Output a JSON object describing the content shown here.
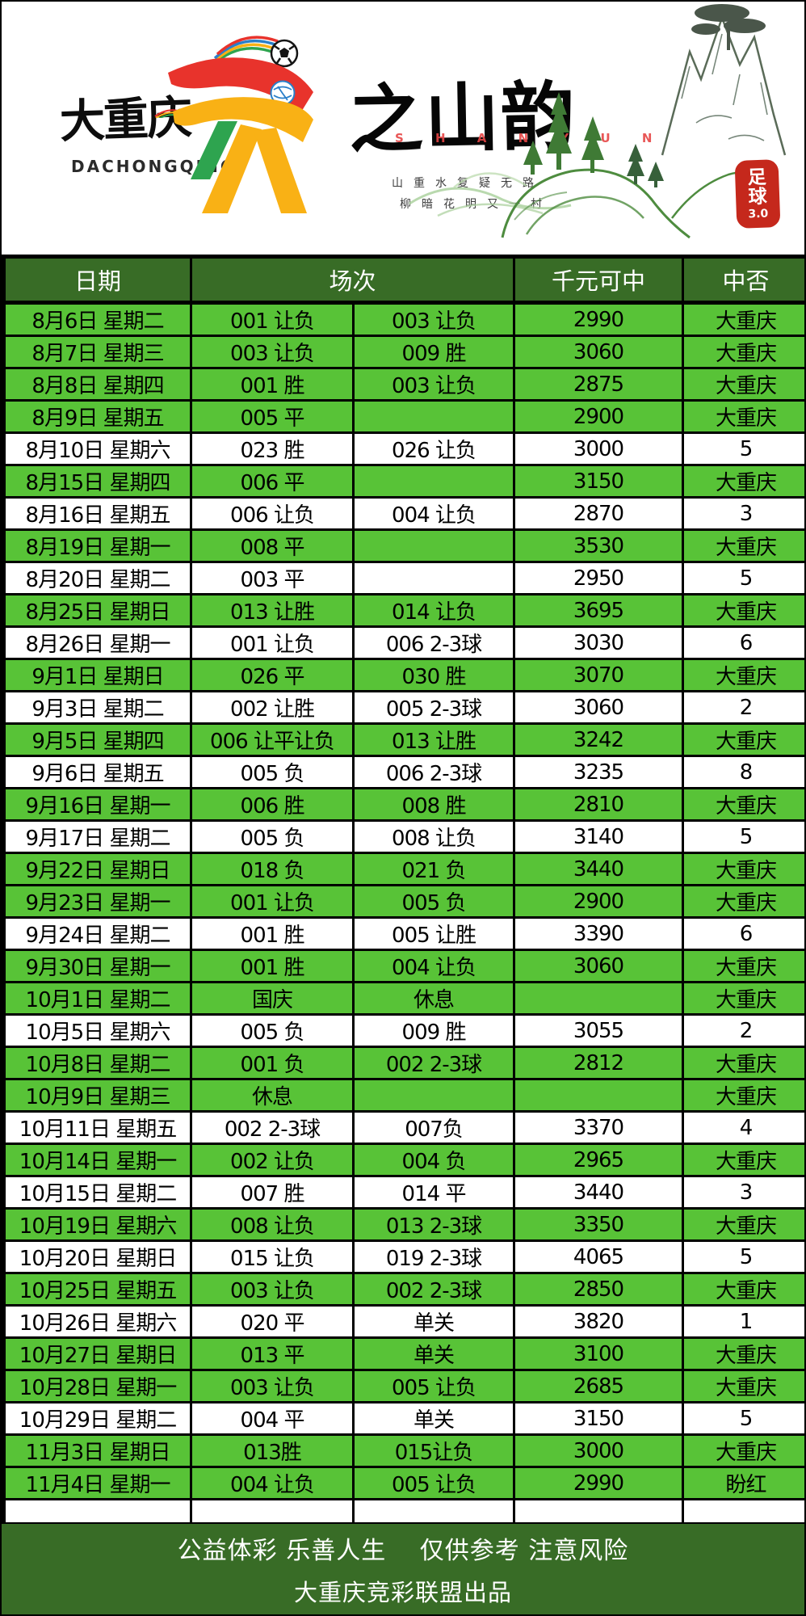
{
  "header": {
    "logo_main": "大重庆",
    "logo_sub": "DACHONGQING",
    "title_calligraphy": "之山韵",
    "title_pinyin": "S H A N Y U N",
    "poem_line1": "山重水复疑无路",
    "poem_line2": "柳暗花明又一村",
    "seal_text": "足球",
    "seal_version": "3.0"
  },
  "table": {
    "columns": [
      "日期",
      "场次",
      "千元可中",
      "中否"
    ],
    "empty_row_count": 5,
    "rows": [
      {
        "date": "8月6日 星期二",
        "m1": "001 让负",
        "m2": "003 让负",
        "prize": "2990",
        "result": "大重庆",
        "win": true
      },
      {
        "date": "8月7日 星期三",
        "m1": "003 让负",
        "m2": "009 胜",
        "prize": "3060",
        "result": "大重庆",
        "win": true
      },
      {
        "date": "8月8日 星期四",
        "m1": "001 胜",
        "m2": "003 让负",
        "prize": "2875",
        "result": "大重庆",
        "win": true
      },
      {
        "date": "8月9日 星期五",
        "m1": "005 平",
        "m2": "",
        "prize": "2900",
        "result": "大重庆",
        "win": true
      },
      {
        "date": "8月10日 星期六",
        "m1": "023 胜",
        "m2": "026 让负",
        "prize": "3000",
        "result": "5",
        "win": false
      },
      {
        "date": "8月15日 星期四",
        "m1": "006 平",
        "m2": "",
        "prize": "3150",
        "result": "大重庆",
        "win": true
      },
      {
        "date": "8月16日 星期五",
        "m1": "006 让负",
        "m2": "004 让负",
        "prize": "2870",
        "result": "3",
        "win": false
      },
      {
        "date": "8月19日 星期一",
        "m1": "008 平",
        "m2": "",
        "prize": "3530",
        "result": "大重庆",
        "win": true
      },
      {
        "date": "8月20日 星期二",
        "m1": "003 平",
        "m2": "",
        "prize": "2950",
        "result": "5",
        "win": false
      },
      {
        "date": "8月25日 星期日",
        "m1": "013 让胜",
        "m2": "014 让负",
        "prize": "3695",
        "result": "大重庆",
        "win": true
      },
      {
        "date": "8月26日 星期一",
        "m1": "001 让负",
        "m2": "006 2-3球",
        "prize": "3030",
        "result": "6",
        "win": false
      },
      {
        "date": "9月1日 星期日",
        "m1": "026 平",
        "m2": "030 胜",
        "prize": "3070",
        "result": "大重庆",
        "win": true
      },
      {
        "date": "9月3日 星期二",
        "m1": "002 让胜",
        "m2": "005 2-3球",
        "prize": "3060",
        "result": "2",
        "win": false
      },
      {
        "date": "9月5日 星期四",
        "m1": "006 让平让负",
        "m2": "013 让胜",
        "prize": "3242",
        "result": "大重庆",
        "win": true
      },
      {
        "date": "9月6日 星期五",
        "m1": "005 负",
        "m2": "006 2-3球",
        "prize": "3235",
        "result": "8",
        "win": false
      },
      {
        "date": "9月16日 星期一",
        "m1": "006 胜",
        "m2": "008 胜",
        "prize": "2810",
        "result": "大重庆",
        "win": true
      },
      {
        "date": "9月17日 星期二",
        "m1": "005 负",
        "m2": "008 让负",
        "prize": "3140",
        "result": "5",
        "win": false
      },
      {
        "date": "9月22日 星期日",
        "m1": "018 负",
        "m2": "021 负",
        "prize": "3440",
        "result": "大重庆",
        "win": true
      },
      {
        "date": "9月23日 星期一",
        "m1": "001 让负",
        "m2": "005 负",
        "prize": "2900",
        "result": "大重庆",
        "win": true
      },
      {
        "date": "9月24日 星期二",
        "m1": "001 胜",
        "m2": "005 让胜",
        "prize": "3390",
        "result": "6",
        "win": false
      },
      {
        "date": "9月30日 星期一",
        "m1": "001 胜",
        "m2": "004 让负",
        "prize": "3060",
        "result": "大重庆",
        "win": true
      },
      {
        "date": "10月1日 星期二",
        "m1": "国庆",
        "m2": "休息",
        "prize": "",
        "result": "大重庆",
        "win": true
      },
      {
        "date": "10月5日 星期六",
        "m1": "005 负",
        "m2": "009 胜",
        "prize": "3055",
        "result": "2",
        "win": false
      },
      {
        "date": "10月8日 星期二",
        "m1": "001 负",
        "m2": "002 2-3球",
        "prize": "2812",
        "result": "大重庆",
        "win": true
      },
      {
        "date": "10月9日 星期三",
        "m1": "休息",
        "m2": "",
        "prize": "",
        "result": "大重庆",
        "win": true
      },
      {
        "date": "10月11日 星期五",
        "m1": "002 2-3球",
        "m2": "007负",
        "prize": "3370",
        "result": "4",
        "win": false
      },
      {
        "date": "10月14日 星期一",
        "m1": "002 让负",
        "m2": "004 负",
        "prize": "2965",
        "result": "大重庆",
        "win": true
      },
      {
        "date": "10月15日 星期二",
        "m1": "007 胜",
        "m2": "014 平",
        "prize": "3440",
        "result": "3",
        "win": false
      },
      {
        "date": "10月19日 星期六",
        "m1": "008 让负",
        "m2": "013 2-3球",
        "prize": "3350",
        "result": "大重庆",
        "win": true
      },
      {
        "date": "10月20日 星期日",
        "m1": "015 让负",
        "m2": "019 2-3球",
        "prize": "4065",
        "result": "5",
        "win": false
      },
      {
        "date": "10月25日 星期五",
        "m1": "003 让负",
        "m2": "002 2-3球",
        "prize": "2850",
        "result": "大重庆",
        "win": true
      },
      {
        "date": "10月26日 星期六",
        "m1": "020 平",
        "m2": "单关",
        "prize": "3820",
        "result": "1",
        "win": false
      },
      {
        "date": "10月27日 星期日",
        "m1": "013 平",
        "m2": "单关",
        "prize": "3100",
        "result": "大重庆",
        "win": true
      },
      {
        "date": "10月28日 星期一",
        "m1": "003 让负",
        "m2": "005 让负",
        "prize": "2685",
        "result": "大重庆",
        "win": true
      },
      {
        "date": "10月29日 星期二",
        "m1": "004 平",
        "m2": "单关",
        "prize": "3150",
        "result": "5",
        "win": false
      },
      {
        "date": "11月3日 星期日",
        "m1": "013胜",
        "m2": "015让负",
        "prize": "3000",
        "result": "大重庆",
        "win": true
      },
      {
        "date": "11月4日 星期一",
        "m1": "004 让负",
        "m2": "005 让负",
        "prize": "2990",
        "result": "盼红",
        "win": true
      }
    ]
  },
  "footer": {
    "line1": "公益体彩 乐善人生　 仅供参考 注意风险",
    "line2": "大重庆竞彩联盟出品"
  },
  "colors": {
    "header_green": "#386c26",
    "row_green": "#58c337",
    "row_white": "#ffffff",
    "seal_red": "#c5281c",
    "mascot_red": "#e8332c",
    "mascot_yellow": "#f9b115",
    "mascot_green": "#2ea44f",
    "mountain_green": "#4e8c3f"
  }
}
